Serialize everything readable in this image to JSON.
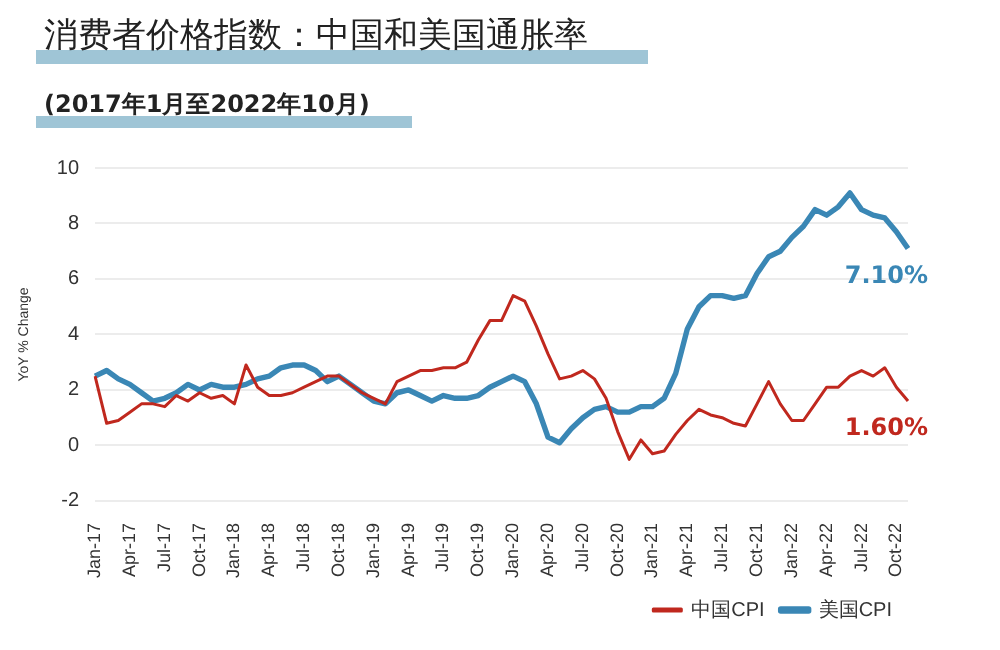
{
  "chart_data": {
    "type": "line",
    "title": "消费者价格指数：中国和美国通胀率",
    "subtitle": "(2017年1月至2022年10月)",
    "ylabel": "YoY % Change",
    "categories": [
      "Jan-17",
      null,
      null,
      "Apr-17",
      null,
      null,
      "Jul-17",
      null,
      null,
      "Oct-17",
      null,
      null,
      "Jan-18",
      null,
      null,
      "Apr-18",
      null,
      null,
      "Jul-18",
      null,
      null,
      "Oct-18",
      null,
      null,
      "Jan-19",
      null,
      null,
      "Apr-19",
      null,
      null,
      "Jul-19",
      null,
      null,
      "Oct-19",
      null,
      null,
      "Jan-20",
      null,
      null,
      "Apr-20",
      null,
      null,
      "Jul-20",
      null,
      null,
      "Oct-20",
      null,
      null,
      "Jan-21",
      null,
      null,
      "Apr-21",
      null,
      null,
      "Jul-21",
      null,
      null,
      "Oct-21",
      null,
      null,
      "Jan-22",
      null,
      null,
      "Apr-22",
      null,
      null,
      "Jul-22",
      null,
      null,
      "Oct-22",
      null
    ],
    "series": [
      {
        "name": "中国CPI",
        "color": "#c0281e",
        "values": [
          2.5,
          0.8,
          0.9,
          1.2,
          1.5,
          1.5,
          1.4,
          1.8,
          1.6,
          1.9,
          1.7,
          1.8,
          1.5,
          2.9,
          2.1,
          1.8,
          1.8,
          1.9,
          2.1,
          2.3,
          2.5,
          2.5,
          2.2,
          1.9,
          1.7,
          1.5,
          2.3,
          2.5,
          2.7,
          2.7,
          2.8,
          2.8,
          3.0,
          3.8,
          4.5,
          4.5,
          5.4,
          5.2,
          4.3,
          3.3,
          2.4,
          2.5,
          2.7,
          2.4,
          1.7,
          0.5,
          -0.5,
          0.2,
          -0.3,
          -0.2,
          0.4,
          0.9,
          1.3,
          1.1,
          1.0,
          0.8,
          0.7,
          1.5,
          2.3,
          1.5,
          0.9,
          0.9,
          1.5,
          2.1,
          2.1,
          2.5,
          2.7,
          2.5,
          2.8,
          2.1,
          1.6
        ]
      },
      {
        "name": "美国CPI",
        "color": "#3a87b5",
        "values": [
          2.5,
          2.7,
          2.4,
          2.2,
          1.9,
          1.6,
          1.7,
          1.9,
          2.2,
          2.0,
          2.2,
          2.1,
          2.1,
          2.2,
          2.4,
          2.5,
          2.8,
          2.9,
          2.9,
          2.7,
          2.3,
          2.5,
          2.2,
          1.9,
          1.6,
          1.5,
          1.9,
          2.0,
          1.8,
          1.6,
          1.8,
          1.7,
          1.7,
          1.8,
          2.1,
          2.3,
          2.5,
          2.3,
          1.5,
          0.3,
          0.1,
          0.6,
          1.0,
          1.3,
          1.4,
          1.2,
          1.2,
          1.4,
          1.4,
          1.7,
          2.6,
          4.2,
          5.0,
          5.4,
          5.4,
          5.3,
          5.4,
          6.2,
          6.8,
          7.0,
          7.5,
          7.9,
          8.5,
          8.3,
          8.6,
          9.1,
          8.5,
          8.3,
          8.2,
          7.7,
          7.1
        ]
      }
    ],
    "ylim": [
      -2,
      10
    ],
    "yticks": [
      -2,
      0,
      2,
      4,
      6,
      8,
      10
    ],
    "grid": "y",
    "legend": "bottom",
    "marker": "none",
    "line_style": "solid",
    "annotations": [
      "1.60%",
      "7.10%"
    ]
  }
}
